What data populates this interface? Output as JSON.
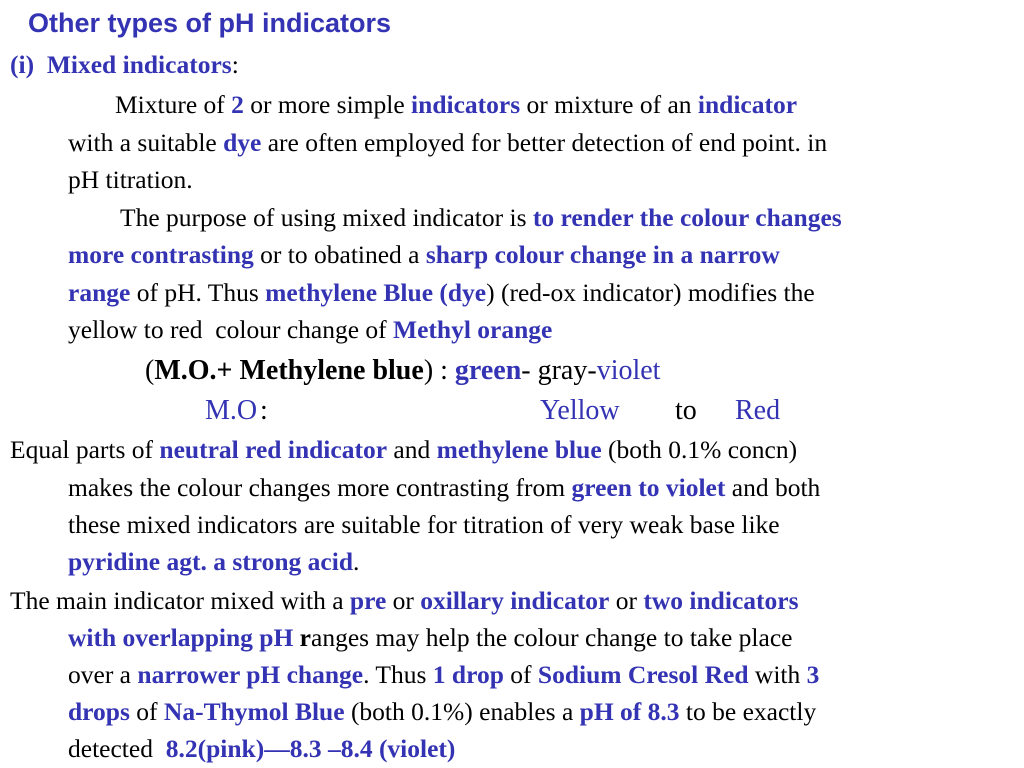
{
  "title": "Other types of pH indicators",
  "lines": [
    [
      "(i)",
      "Mixed indicators",
      ":"
    ],
    [
      "Mixture of ",
      "2",
      " or more simple ",
      "indicators",
      " or mixture of an ",
      "indicator"
    ],
    [
      "with a suitable ",
      "dye",
      " are often employed for better detection of end point. in"
    ],
    [
      "pH titration."
    ],
    [
      "The purpose of using mixed indicator is ",
      "to render the colour changes"
    ],
    [
      "more contrasting",
      " or to obatined a ",
      "sharp colour change in a narrow"
    ],
    [
      "range",
      " of pH. Thus ",
      "methylene Blue (dye",
      ") (red-ox indicator) modifies the"
    ],
    [
      "yellow to red  colour change of ",
      "Methyl orange"
    ],
    [
      "(",
      "M.O.+ Methylene blue",
      ") : ",
      "green",
      "- gray-",
      "violet"
    ],
    [
      "M.O",
      " :",
      "Yellow",
      "to",
      "Red"
    ],
    [
      "Equal parts of ",
      "neutral red indicator",
      " and ",
      "methylene blue",
      " (both 0.1% concn)"
    ],
    [
      "makes the colour changes more contrasting from ",
      "green to violet",
      " and both"
    ],
    [
      "these mixed indicators are suitable for titration of very weak base like"
    ],
    [
      "pyridine agt. a strong acid",
      "."
    ],
    [
      "The main indicator mixed with a ",
      "pre",
      " or ",
      "oxillary indicator",
      " or ",
      "two indicators"
    ],
    [
      "with overlapping pH ",
      "r",
      "anges may help the colour change to take place"
    ],
    [
      "over a ",
      "narrower pH change",
      ". Thus ",
      "1 drop",
      " of ",
      "Sodium Cresol Red",
      " with ",
      "3"
    ],
    [
      "drops",
      " of ",
      "Na-Thymol Blue",
      " (both 0.1%) enables a ",
      "pH of 8.3",
      " to be exactly"
    ],
    [
      "detected  ",
      "8.2(pink)—8.3 –8.4 (violet)"
    ]
  ]
}
